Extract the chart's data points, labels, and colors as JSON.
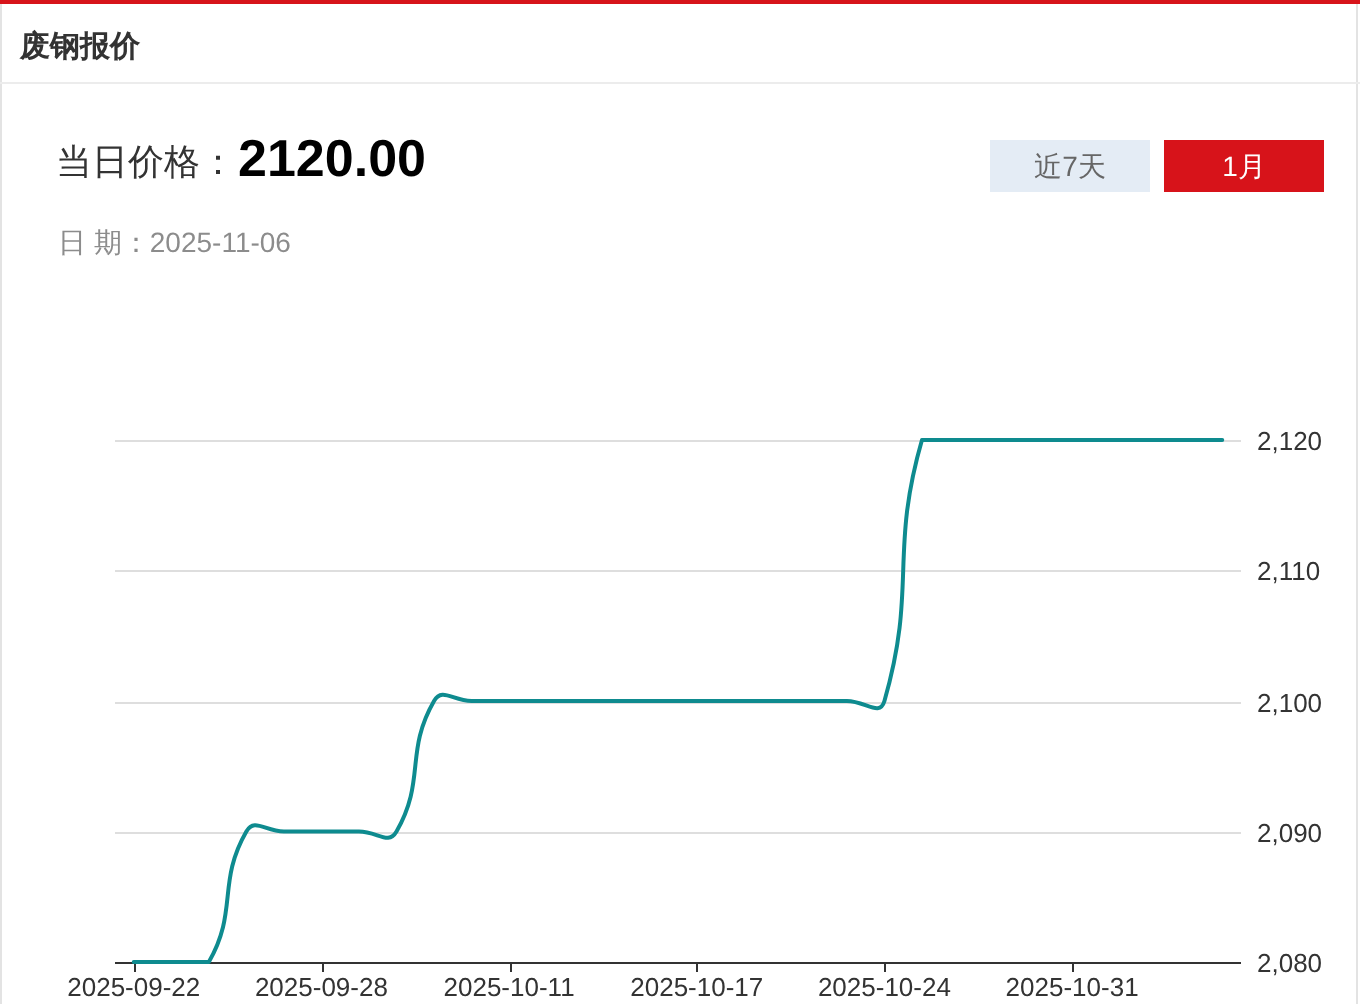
{
  "chart_data": {
    "type": "line",
    "title": "废钢报价",
    "annotations": [
      "当日价格：",
      "2120.00",
      "日 期：2025-11-06",
      "近7天",
      "1月"
    ],
    "categories": [
      "2025-09-22",
      null,
      null,
      null,
      null,
      "2025-09-28",
      null,
      null,
      null,
      null,
      "2025-10-11",
      null,
      null,
      null,
      null,
      "2025-10-17",
      null,
      null,
      null,
      null,
      "2025-10-24",
      null,
      null,
      null,
      null,
      "2025-10-31",
      null,
      null,
      null,
      null
    ],
    "series": [
      {
        "color": "#0e8b8f",
        "values": [
          2080,
          2080,
          2080,
          2090,
          2090,
          2090,
          2090,
          2090,
          2100,
          2100,
          2100,
          2100,
          2100,
          2100,
          2100,
          2100,
          2100,
          2100,
          2100,
          2100,
          2100,
          2120,
          2120,
          2120,
          2120,
          2120,
          2120,
          2120,
          2120,
          2120
        ]
      }
    ],
    "ylim": [
      2080,
      2120
    ],
    "yticks": [
      {
        "value": 2080,
        "label": "2,080"
      },
      {
        "value": 2090,
        "label": "2,090"
      },
      {
        "value": 2100,
        "label": "2,100"
      },
      {
        "value": 2110,
        "label": "2,110"
      },
      {
        "value": 2120,
        "label": "2,120"
      }
    ],
    "grid": "y",
    "line_style": "solid"
  }
}
